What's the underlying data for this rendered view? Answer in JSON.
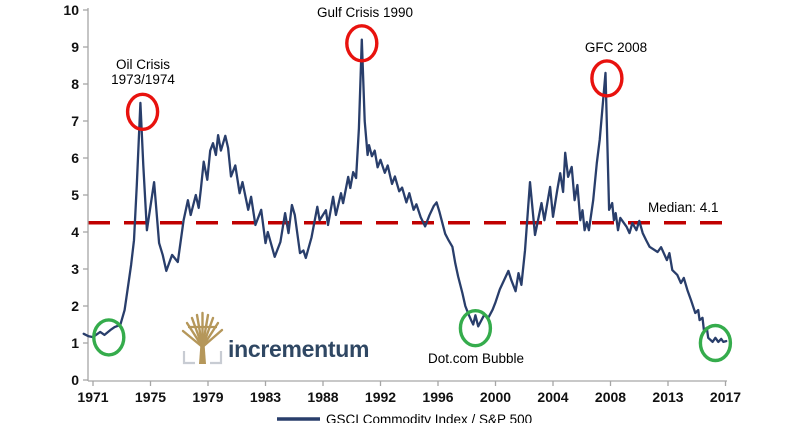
{
  "chart_data": {
    "type": "line",
    "title": "",
    "xlabel": "",
    "ylabel": "",
    "ylim": [
      0,
      10
    ],
    "grid": false,
    "legend_position": "bottom-center",
    "y_tick_labels": [
      "0",
      "1",
      "2",
      "3",
      "4",
      "5",
      "6",
      "7",
      "8",
      "9",
      "10"
    ],
    "x_tick_labels": [
      "1971",
      "1975",
      "1979",
      "1983",
      "1988",
      "1992",
      "1996",
      "2000",
      "2004",
      "2008",
      "2013",
      "2017"
    ],
    "x_tick_years": [
      1971,
      1975,
      1979,
      1983,
      1988,
      1992,
      1996,
      2000,
      2004,
      2008,
      2013,
      2017
    ],
    "median": {
      "value": 4.1,
      "label": "Median: 4.1",
      "drawn_at": 4.25
    },
    "colors": {
      "line": "#293E6B",
      "median": "#C00000",
      "red_circle": "#E8120E",
      "green_circle": "#35AC4C",
      "axis": "#A6A6A6",
      "logo_tree": "#B5975A",
      "logo_bracket": "#C8CCD3",
      "logo_text": "#2F4763"
    },
    "annotations": {
      "oil": {
        "line1": "Oil Crisis",
        "line2": "1973/1974",
        "circle": "red",
        "circle_year": 1974.45,
        "circle_value": 7.25
      },
      "gulf": {
        "label": "Gulf Crisis 1990",
        "circle": "red",
        "circle_year": 1990.7,
        "circle_value": 9.1
      },
      "gfc": {
        "label": "GFC 2008",
        "circle": "red",
        "circle_year": 2007.75,
        "circle_value": 8.15
      },
      "dotcom": {
        "label": "Dot.com Bubble",
        "circle": "green",
        "circle_year": 1998.6,
        "circle_value": 1.4
      },
      "start_low": {
        "circle": "green",
        "circle_year": 1972.1,
        "circle_value": 1.15
      },
      "end_low": {
        "circle": "green",
        "circle_year": 2016.3,
        "circle_value": 1.0
      }
    },
    "series": [
      {
        "name": "GSCI Commodity Index / S&P 500",
        "color": "#293E6B",
        "points": [
          [
            1970.35,
            1.25
          ],
          [
            1970.7,
            1.18
          ],
          [
            1971.0,
            1.16
          ],
          [
            1971.5,
            1.3
          ],
          [
            1971.8,
            1.22
          ],
          [
            1972.2,
            1.35
          ],
          [
            1972.5,
            1.43
          ],
          [
            1972.9,
            1.49
          ],
          [
            1973.2,
            1.89
          ],
          [
            1973.4,
            2.43
          ],
          [
            1973.65,
            3.11
          ],
          [
            1973.85,
            3.78
          ],
          [
            1974.05,
            5.27
          ],
          [
            1974.3,
            7.49
          ],
          [
            1974.5,
            5.8
          ],
          [
            1974.75,
            4.05
          ],
          [
            1975.0,
            4.7
          ],
          [
            1975.25,
            5.35
          ],
          [
            1975.6,
            3.7
          ],
          [
            1975.85,
            3.38
          ],
          [
            1976.1,
            2.95
          ],
          [
            1976.5,
            3.38
          ],
          [
            1976.9,
            3.19
          ],
          [
            1977.3,
            4.32
          ],
          [
            1977.6,
            4.86
          ],
          [
            1977.8,
            4.46
          ],
          [
            1978.15,
            5.0
          ],
          [
            1978.35,
            4.65
          ],
          [
            1978.5,
            5.14
          ],
          [
            1978.7,
            5.9
          ],
          [
            1978.95,
            5.41
          ],
          [
            1979.15,
            6.2
          ],
          [
            1979.35,
            6.4
          ],
          [
            1979.55,
            6.08
          ],
          [
            1979.7,
            6.62
          ],
          [
            1979.9,
            6.2
          ],
          [
            1980.2,
            6.6
          ],
          [
            1980.4,
            6.27
          ],
          [
            1980.6,
            5.5
          ],
          [
            1980.9,
            5.8
          ],
          [
            1981.2,
            5.05
          ],
          [
            1981.4,
            5.35
          ],
          [
            1981.8,
            4.6
          ],
          [
            1982.0,
            4.95
          ],
          [
            1982.3,
            4.19
          ],
          [
            1982.7,
            4.6
          ],
          [
            1983.0,
            3.7
          ],
          [
            1983.2,
            4.0
          ],
          [
            1983.8,
            3.33
          ],
          [
            1984.3,
            3.73
          ],
          [
            1984.7,
            4.51
          ],
          [
            1985.0,
            3.97
          ],
          [
            1985.3,
            4.73
          ],
          [
            1985.55,
            4.46
          ],
          [
            1986.0,
            3.43
          ],
          [
            1986.3,
            3.5
          ],
          [
            1986.5,
            3.3
          ],
          [
            1987.0,
            3.85
          ],
          [
            1987.5,
            4.68
          ],
          [
            1987.7,
            4.32
          ],
          [
            1988.2,
            4.59
          ],
          [
            1988.35,
            4.19
          ],
          [
            1988.7,
            4.95
          ],
          [
            1988.9,
            4.46
          ],
          [
            1989.25,
            5.05
          ],
          [
            1989.4,
            4.78
          ],
          [
            1989.75,
            5.49
          ],
          [
            1989.9,
            5.19
          ],
          [
            1990.1,
            5.62
          ],
          [
            1990.3,
            5.46
          ],
          [
            1990.5,
            6.8
          ],
          [
            1990.7,
            9.2
          ],
          [
            1990.9,
            7.0
          ],
          [
            1991.1,
            6.08
          ],
          [
            1991.2,
            6.35
          ],
          [
            1991.4,
            6.05
          ],
          [
            1991.6,
            6.2
          ],
          [
            1991.8,
            5.75
          ],
          [
            1992.0,
            5.95
          ],
          [
            1992.3,
            5.6
          ],
          [
            1992.5,
            5.8
          ],
          [
            1992.8,
            5.3
          ],
          [
            1993.0,
            5.5
          ],
          [
            1993.3,
            5.1
          ],
          [
            1993.5,
            5.2
          ],
          [
            1993.8,
            4.8
          ],
          [
            1994.0,
            5.05
          ],
          [
            1994.3,
            4.6
          ],
          [
            1994.5,
            4.75
          ],
          [
            1994.8,
            4.4
          ],
          [
            1995.1,
            4.15
          ],
          [
            1995.4,
            4.45
          ],
          [
            1995.7,
            4.7
          ],
          [
            1995.9,
            4.8
          ],
          [
            1996.1,
            4.55
          ],
          [
            1996.3,
            4.25
          ],
          [
            1996.5,
            3.95
          ],
          [
            1996.7,
            3.8
          ],
          [
            1997.0,
            3.6
          ],
          [
            1997.2,
            3.15
          ],
          [
            1997.4,
            2.8
          ],
          [
            1997.7,
            2.35
          ],
          [
            1997.9,
            2.0
          ],
          [
            1998.1,
            1.8
          ],
          [
            1998.3,
            1.62
          ],
          [
            1998.45,
            1.5
          ],
          [
            1998.6,
            1.75
          ],
          [
            1998.8,
            1.45
          ],
          [
            1999.0,
            1.6
          ],
          [
            1999.2,
            1.75
          ],
          [
            1999.5,
            1.68
          ],
          [
            1999.8,
            1.9
          ],
          [
            2000.0,
            2.1
          ],
          [
            2000.3,
            2.45
          ],
          [
            2000.6,
            2.7
          ],
          [
            2000.9,
            2.95
          ],
          [
            2001.1,
            2.7
          ],
          [
            2001.4,
            2.4
          ],
          [
            2001.6,
            2.89
          ],
          [
            2001.8,
            2.57
          ],
          [
            2002.05,
            3.5
          ],
          [
            2002.4,
            5.35
          ],
          [
            2002.75,
            3.92
          ],
          [
            2003.2,
            4.78
          ],
          [
            2003.4,
            4.32
          ],
          [
            2003.8,
            5.22
          ],
          [
            2004.0,
            4.41
          ],
          [
            2004.3,
            5.14
          ],
          [
            2004.5,
            5.59
          ],
          [
            2004.7,
            5.08
          ],
          [
            2004.85,
            6.14
          ],
          [
            2005.05,
            5.49
          ],
          [
            2005.3,
            5.76
          ],
          [
            2005.5,
            4.86
          ],
          [
            2005.7,
            5.27
          ],
          [
            2005.9,
            4.32
          ],
          [
            2006.05,
            4.59
          ],
          [
            2006.2,
            4.05
          ],
          [
            2006.35,
            4.27
          ],
          [
            2006.5,
            4.05
          ],
          [
            2006.8,
            4.86
          ],
          [
            2007.05,
            5.86
          ],
          [
            2007.25,
            6.49
          ],
          [
            2007.65,
            8.3
          ],
          [
            2007.9,
            4.6
          ],
          [
            2008.15,
            4.78
          ],
          [
            2008.3,
            4.32
          ],
          [
            2008.45,
            4.51
          ],
          [
            2008.65,
            4.05
          ],
          [
            2008.85,
            4.38
          ],
          [
            2009.4,
            4.14
          ],
          [
            2009.65,
            3.97
          ],
          [
            2009.9,
            4.24
          ],
          [
            2010.25,
            4.05
          ],
          [
            2010.5,
            4.3
          ],
          [
            2010.8,
            3.97
          ],
          [
            2011.1,
            3.78
          ],
          [
            2011.4,
            3.6
          ],
          [
            2012.1,
            3.46
          ],
          [
            2012.4,
            3.59
          ],
          [
            2012.9,
            3.24
          ],
          [
            2013.1,
            3.43
          ],
          [
            2013.3,
            2.97
          ],
          [
            2013.65,
            2.84
          ],
          [
            2013.9,
            2.62
          ],
          [
            2014.1,
            2.76
          ],
          [
            2014.35,
            2.43
          ],
          [
            2014.6,
            2.16
          ],
          [
            2014.9,
            1.81
          ],
          [
            2015.1,
            1.89
          ],
          [
            2015.2,
            1.62
          ],
          [
            2015.4,
            1.68
          ],
          [
            2015.5,
            1.35
          ],
          [
            2015.7,
            1.41
          ],
          [
            2015.8,
            1.14
          ],
          [
            2016.1,
            1.03
          ],
          [
            2016.3,
            1.14
          ],
          [
            2016.5,
            1.03
          ],
          [
            2016.7,
            1.11
          ],
          [
            2016.85,
            1.03
          ],
          [
            2017.05,
            1.05
          ]
        ]
      }
    ]
  },
  "legend": {
    "label": "GSCI Commodity Index / S&P 500"
  },
  "logo": {
    "text": "incrementum"
  }
}
